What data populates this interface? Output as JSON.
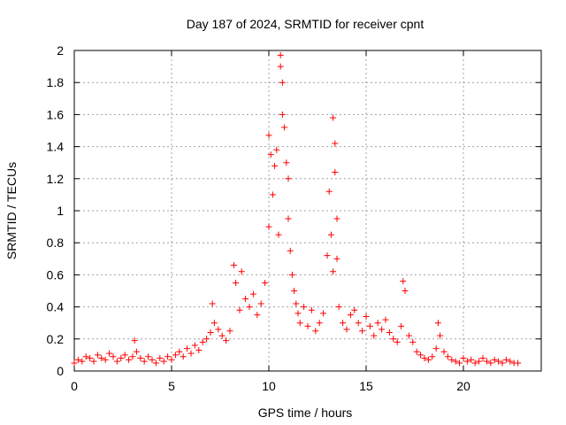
{
  "chart_data": {
    "type": "scatter",
    "title": "Day 187 of 2024, SRMTID for receiver cpnt",
    "xlabel": "GPS time / hours",
    "ylabel": "SRMTID / TECUs",
    "xlim": [
      0,
      24
    ],
    "ylim": [
      0,
      2
    ],
    "xticks": [
      0,
      5,
      10,
      15,
      20
    ],
    "xtick_labels": [
      "0",
      "5",
      "10",
      "15",
      "20"
    ],
    "yticks": [
      0,
      0.2,
      0.4,
      0.6,
      0.8,
      1,
      1.2,
      1.4,
      1.6,
      1.8,
      2
    ],
    "ytick_labels": [
      "0",
      "0.2",
      "0.4",
      "0.6",
      "0.8",
      "1",
      "1.2",
      "1.4",
      "1.6",
      "1.8",
      "2"
    ],
    "grid": true,
    "marker": "plus",
    "marker_color": "#ff0000",
    "series": [
      {
        "name": "SRMTID",
        "x": [
          0.0,
          0.2,
          0.4,
          0.6,
          0.8,
          1.0,
          1.2,
          1.4,
          1.6,
          1.8,
          2.0,
          2.2,
          2.4,
          2.6,
          2.8,
          3.0,
          3.1,
          3.2,
          3.4,
          3.6,
          3.8,
          4.0,
          4.2,
          4.4,
          4.6,
          4.8,
          5.0,
          5.2,
          5.4,
          5.6,
          5.8,
          6.0,
          6.2,
          6.4,
          6.6,
          6.8,
          7.0,
          7.1,
          7.2,
          7.4,
          7.6,
          7.8,
          8.0,
          8.2,
          8.3,
          8.5,
          8.6,
          8.8,
          9.0,
          9.2,
          9.4,
          9.6,
          9.8,
          10.0,
          10.0,
          10.1,
          10.2,
          10.3,
          10.4,
          10.5,
          10.6,
          10.6,
          10.7,
          10.7,
          10.8,
          10.9,
          11.0,
          11.0,
          11.1,
          11.2,
          11.3,
          11.4,
          11.5,
          11.6,
          11.8,
          12.0,
          12.2,
          12.4,
          12.6,
          12.8,
          13.0,
          13.1,
          13.2,
          13.3,
          13.3,
          13.4,
          13.4,
          13.5,
          13.5,
          13.6,
          13.8,
          14.0,
          14.2,
          14.4,
          14.6,
          14.8,
          15.0,
          15.2,
          15.4,
          15.6,
          15.8,
          16.0,
          16.2,
          16.4,
          16.6,
          16.8,
          16.9,
          17.0,
          17.2,
          17.4,
          17.6,
          17.8,
          18.0,
          18.2,
          18.4,
          18.6,
          18.7,
          18.8,
          19.0,
          19.2,
          19.4,
          19.6,
          19.8,
          20.0,
          20.2,
          20.4,
          20.6,
          20.8,
          21.0,
          21.2,
          21.4,
          21.6,
          21.8,
          22.0,
          22.2,
          22.4,
          22.6,
          22.8
        ],
        "y": [
          0.05,
          0.07,
          0.06,
          0.09,
          0.08,
          0.06,
          0.1,
          0.08,
          0.07,
          0.11,
          0.09,
          0.06,
          0.08,
          0.1,
          0.07,
          0.09,
          0.19,
          0.12,
          0.08,
          0.06,
          0.09,
          0.07,
          0.05,
          0.08,
          0.06,
          0.09,
          0.07,
          0.1,
          0.12,
          0.09,
          0.14,
          0.11,
          0.16,
          0.13,
          0.18,
          0.2,
          0.24,
          0.42,
          0.3,
          0.26,
          0.22,
          0.19,
          0.25,
          0.66,
          0.55,
          0.38,
          0.62,
          0.45,
          0.4,
          0.48,
          0.35,
          0.42,
          0.55,
          1.47,
          0.9,
          1.35,
          1.1,
          1.28,
          1.38,
          0.85,
          1.97,
          1.9,
          1.8,
          1.6,
          1.52,
          1.3,
          0.95,
          1.2,
          0.75,
          0.6,
          0.5,
          0.42,
          0.36,
          0.3,
          0.4,
          0.28,
          0.38,
          0.25,
          0.3,
          0.36,
          0.72,
          1.12,
          0.85,
          0.62,
          1.58,
          1.42,
          1.24,
          0.95,
          0.7,
          0.4,
          0.3,
          0.26,
          0.35,
          0.38,
          0.3,
          0.25,
          0.34,
          0.28,
          0.22,
          0.3,
          0.26,
          0.32,
          0.24,
          0.2,
          0.18,
          0.28,
          0.56,
          0.5,
          0.22,
          0.18,
          0.12,
          0.1,
          0.08,
          0.07,
          0.09,
          0.14,
          0.3,
          0.22,
          0.12,
          0.09,
          0.07,
          0.06,
          0.05,
          0.08,
          0.06,
          0.07,
          0.05,
          0.06,
          0.08,
          0.06,
          0.05,
          0.07,
          0.06,
          0.05,
          0.07,
          0.06,
          0.05,
          0.05
        ]
      }
    ]
  }
}
